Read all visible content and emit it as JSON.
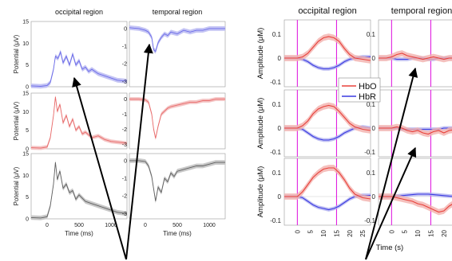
{
  "eeg": {
    "titles": [
      "occipital region",
      "temporal region"
    ],
    "ylabel": "Potential (μV)",
    "xlabel": "Time (ms)",
    "occipital_yticks": [
      "0",
      "5",
      "10",
      "15"
    ],
    "temporal_yticks": [
      "0",
      "-1",
      "-2",
      "-3"
    ],
    "xticks": [
      "0",
      "500",
      "1000"
    ]
  },
  "fnirs": {
    "titles": [
      "occipital region",
      "temporal region"
    ],
    "ylabel": "Amplitude (μM)",
    "xlabel": "Time (s)",
    "yticks": [
      "0.1",
      "0",
      "-0.1"
    ],
    "xticks": [
      "0",
      "5",
      "10",
      "15",
      "20",
      "25"
    ]
  },
  "legend": [
    {
      "label": "HbO",
      "color": "#e8403a"
    },
    {
      "label": "HbR",
      "color": "#3a3ae0"
    }
  ],
  "colors": {
    "eeg_rows": [
      "#6a6ae8",
      "#e86a6a",
      "#606060"
    ],
    "eeg_rows_fill": [
      "#c4c4f4",
      "#f4c4c4",
      "#c8c8c8"
    ],
    "hbo": "#e8403a",
    "hbo_fill": "#f2b0ac",
    "hbr": "#3a3ae0",
    "hbr_fill": "#b0b0f0",
    "marker": "#e020e0"
  },
  "chart_data": [
    {
      "type": "line",
      "panel": "EEG occipital row 1 (blue)",
      "xlabel": "Time (ms)",
      "ylabel": "Potential (μV)",
      "xlim": [
        -250,
        1250
      ],
      "ylim": [
        0,
        15
      ],
      "x": [
        -250,
        -100,
        0,
        50,
        100,
        130,
        170,
        210,
        250,
        300,
        350,
        400,
        450,
        500,
        550,
        600,
        650,
        700,
        800,
        900,
        1000,
        1100,
        1250
      ],
      "values": [
        0.2,
        0.1,
        0.3,
        1.0,
        4.0,
        7.0,
        6.5,
        8.0,
        5.5,
        7.0,
        5.0,
        7.5,
        5.0,
        6.0,
        4.0,
        4.5,
        3.5,
        4.0,
        3.0,
        2.5,
        2.0,
        1.5,
        1.3
      ]
    },
    {
      "type": "line",
      "panel": "EEG occipital row 2 (red)",
      "xlabel": "Time (ms)",
      "ylabel": "Potential (μV)",
      "xlim": [
        -250,
        1250
      ],
      "ylim": [
        0,
        15
      ],
      "x": [
        -250,
        -100,
        0,
        50,
        100,
        130,
        160,
        200,
        250,
        300,
        350,
        400,
        450,
        500,
        550,
        600,
        700,
        800,
        900,
        1000,
        1100,
        1250
      ],
      "values": [
        0.3,
        0.2,
        0.5,
        3.0,
        9.0,
        14.0,
        10.0,
        12.0,
        7.0,
        9.0,
        6.0,
        8.0,
        5.0,
        6.0,
        4.0,
        4.5,
        3.0,
        3.5,
        2.5,
        2.0,
        1.8,
        1.5
      ]
    },
    {
      "type": "line",
      "panel": "EEG occipital row 3 (gray)",
      "xlabel": "Time (ms)",
      "ylabel": "Potential (μV)",
      "xlim": [
        -250,
        1250
      ],
      "ylim": [
        0,
        15
      ],
      "x": [
        -250,
        -100,
        0,
        50,
        100,
        130,
        160,
        200,
        250,
        300,
        350,
        400,
        450,
        500,
        600,
        700,
        800,
        900,
        1000,
        1100,
        1250
      ],
      "values": [
        0.3,
        0.2,
        0.5,
        3.0,
        8.0,
        13.0,
        9.0,
        11.0,
        7.0,
        8.0,
        6.0,
        6.5,
        4.5,
        5.5,
        4.0,
        3.5,
        3.0,
        2.5,
        2.0,
        1.5,
        1.2
      ]
    },
    {
      "type": "line",
      "panel": "EEG temporal row 1 (blue)",
      "xlabel": "Time (ms)",
      "ylabel": "",
      "xlim": [
        -250,
        1250
      ],
      "ylim": [
        -3.3,
        0.4
      ],
      "x": [
        -250,
        -100,
        0,
        50,
        100,
        130,
        160,
        200,
        250,
        300,
        350,
        400,
        500,
        600,
        700,
        800,
        900,
        1000,
        1100,
        1250
      ],
      "values": [
        0.05,
        0.0,
        -0.1,
        -0.2,
        -0.5,
        -1.2,
        -1.3,
        -0.8,
        -0.5,
        -0.3,
        -0.4,
        -0.2,
        -0.3,
        -0.1,
        -0.2,
        -0.1,
        -0.1,
        0.0,
        0.0,
        0.0
      ]
    },
    {
      "type": "line",
      "panel": "EEG temporal row 2 (red)",
      "xlabel": "Time (ms)",
      "ylabel": "",
      "xlim": [
        -250,
        1250
      ],
      "ylim": [
        -3.3,
        0.4
      ],
      "x": [
        -250,
        -100,
        0,
        50,
        100,
        130,
        160,
        200,
        250,
        300,
        350,
        400,
        500,
        600,
        700,
        800,
        900,
        1000,
        1100,
        1250
      ],
      "values": [
        0.0,
        0.0,
        -0.05,
        -0.2,
        -1.0,
        -2.0,
        -2.6,
        -1.8,
        -1.0,
        -0.8,
        -0.6,
        -0.5,
        -0.4,
        -0.3,
        -0.2,
        -0.2,
        -0.1,
        -0.1,
        0.0,
        0.0
      ]
    },
    {
      "type": "line",
      "panel": "EEG temporal row 3 (gray)",
      "xlabel": "Time (ms)",
      "ylabel": "",
      "xlim": [
        -250,
        1250
      ],
      "ylim": [
        -3.3,
        0.4
      ],
      "x": [
        -250,
        -100,
        0,
        50,
        100,
        130,
        160,
        200,
        250,
        300,
        350,
        400,
        450,
        500,
        600,
        700,
        800,
        900,
        1000,
        1100,
        1250
      ],
      "values": [
        0.0,
        0.0,
        -0.05,
        -0.3,
        -0.9,
        -1.6,
        -2.3,
        -1.5,
        -1.8,
        -1.0,
        -1.2,
        -0.7,
        -0.9,
        -0.6,
        -0.5,
        -0.4,
        -0.3,
        -0.3,
        -0.2,
        -0.1,
        -0.1
      ]
    },
    {
      "type": "line",
      "panel": "fNIRS occipital row 1",
      "xlabel": "Time (s)",
      "ylabel": "Amplitude (μM)",
      "xlim": [
        -5,
        28
      ],
      "ylim": [
        -0.12,
        0.16
      ],
      "x": [
        -5,
        -2,
        0,
        2,
        4,
        6,
        8,
        10,
        12,
        14,
        16,
        18,
        20,
        22,
        25,
        28
      ],
      "series": [
        {
          "name": "HbO",
          "values": [
            0.0,
            0.0,
            0.0,
            0.005,
            0.02,
            0.045,
            0.07,
            0.085,
            0.09,
            0.085,
            0.07,
            0.04,
            0.015,
            0.0,
            -0.005,
            -0.01
          ]
        },
        {
          "name": "HbR",
          "values": [
            0.0,
            0.0,
            0.0,
            -0.005,
            -0.015,
            -0.03,
            -0.04,
            -0.045,
            -0.045,
            -0.04,
            -0.03,
            -0.015,
            -0.005,
            0.0,
            0.005,
            0.005
          ]
        }
      ],
      "markers": [
        0,
        15
      ]
    },
    {
      "type": "line",
      "panel": "fNIRS occipital row 2",
      "xlabel": "Time (s)",
      "ylabel": "Amplitude (μM)",
      "xlim": [
        -5,
        28
      ],
      "ylim": [
        -0.12,
        0.16
      ],
      "x": [
        -5,
        -2,
        0,
        2,
        4,
        6,
        8,
        10,
        12,
        14,
        16,
        18,
        20,
        22,
        25,
        28
      ],
      "series": [
        {
          "name": "HbO",
          "values": [
            0.0,
            0.0,
            0.0,
            0.01,
            0.03,
            0.06,
            0.08,
            0.09,
            0.095,
            0.09,
            0.07,
            0.045,
            0.02,
            0.005,
            -0.005,
            -0.01
          ]
        },
        {
          "name": "HbR",
          "values": [
            0.0,
            0.0,
            0.0,
            -0.005,
            -0.02,
            -0.035,
            -0.045,
            -0.05,
            -0.05,
            -0.045,
            -0.035,
            -0.02,
            -0.01,
            0.0,
            0.005,
            0.0
          ]
        }
      ],
      "markers": [
        0,
        15
      ]
    },
    {
      "type": "line",
      "panel": "fNIRS occipital row 3",
      "xlabel": "Time (s)",
      "ylabel": "Amplitude (μM)",
      "xlim": [
        -5,
        28
      ],
      "ylim": [
        -0.12,
        0.16
      ],
      "x": [
        -5,
        -2,
        0,
        2,
        4,
        6,
        8,
        10,
        12,
        14,
        16,
        18,
        20,
        22,
        25,
        28
      ],
      "series": [
        {
          "name": "HbO",
          "values": [
            0.0,
            0.0,
            0.0,
            0.02,
            0.05,
            0.08,
            0.1,
            0.115,
            0.12,
            0.12,
            0.1,
            0.07,
            0.035,
            0.01,
            -0.005,
            -0.01
          ]
        },
        {
          "name": "HbR",
          "values": [
            0.0,
            0.0,
            0.0,
            -0.005,
            -0.02,
            -0.035,
            -0.045,
            -0.05,
            -0.055,
            -0.05,
            -0.04,
            -0.025,
            -0.01,
            0.0,
            0.005,
            0.005
          ]
        }
      ],
      "markers": [
        0,
        15
      ]
    },
    {
      "type": "line",
      "panel": "fNIRS temporal row 1",
      "xlabel": "Time (s)",
      "ylabel": "",
      "xlim": [
        -5,
        28
      ],
      "ylim": [
        -0.12,
        0.16
      ],
      "x": [
        -5,
        -2,
        0,
        2,
        4,
        6,
        8,
        10,
        12,
        14,
        16,
        18,
        20,
        22,
        25,
        28
      ],
      "series": [
        {
          "name": "HbO",
          "values": [
            0.0,
            0.0,
            0.005,
            0.015,
            0.02,
            0.01,
            0.005,
            0.0,
            -0.005,
            0.0,
            0.005,
            0.0,
            -0.005,
            0.0,
            0.0,
            0.0
          ]
        },
        {
          "name": "HbR",
          "values": [
            0.0,
            0.0,
            0.0,
            -0.005,
            -0.005,
            -0.005,
            0.0,
            0.0,
            0.0,
            -0.005,
            -0.005,
            0.0,
            0.0,
            0.0,
            0.0,
            0.0
          ]
        }
      ],
      "markers": [
        0,
        15
      ]
    },
    {
      "type": "line",
      "panel": "fNIRS temporal row 2",
      "xlabel": "Time (s)",
      "ylabel": "",
      "xlim": [
        -5,
        28
      ],
      "ylim": [
        -0.12,
        0.16
      ],
      "x": [
        -5,
        -2,
        0,
        2,
        4,
        6,
        8,
        10,
        12,
        14,
        16,
        18,
        20,
        22,
        25,
        28
      ],
      "series": [
        {
          "name": "HbO",
          "values": [
            0.0,
            0.0,
            0.0,
            0.005,
            0.0,
            -0.01,
            -0.015,
            -0.01,
            -0.02,
            -0.025,
            -0.015,
            -0.01,
            -0.02,
            -0.01,
            -0.005,
            0.0
          ]
        },
        {
          "name": "HbR",
          "values": [
            0.0,
            0.0,
            0.0,
            0.0,
            -0.005,
            -0.005,
            -0.005,
            -0.005,
            -0.005,
            -0.005,
            -0.005,
            -0.005,
            0.0,
            0.0,
            0.0,
            0.0
          ]
        }
      ],
      "markers": [
        0,
        15
      ]
    },
    {
      "type": "line",
      "panel": "fNIRS temporal row 3",
      "xlabel": "Time (s)",
      "ylabel": "",
      "xlim": [
        -5,
        28
      ],
      "ylim": [
        -0.12,
        0.16
      ],
      "x": [
        -5,
        -2,
        0,
        2,
        4,
        6,
        8,
        10,
        12,
        14,
        16,
        18,
        20,
        22,
        25,
        28
      ],
      "series": [
        {
          "name": "HbO",
          "values": [
            0.0,
            0.0,
            0.0,
            -0.005,
            -0.01,
            -0.015,
            -0.02,
            -0.03,
            -0.035,
            -0.045,
            -0.055,
            -0.065,
            -0.06,
            -0.04,
            -0.02,
            -0.01
          ]
        },
        {
          "name": "HbR",
          "values": [
            0.0,
            0.0,
            0.0,
            0.002,
            0.004,
            0.006,
            0.008,
            0.01,
            0.01,
            0.01,
            0.008,
            0.006,
            0.004,
            0.002,
            0.0,
            0.0
          ]
        }
      ],
      "markers": [
        0,
        15
      ]
    }
  ]
}
